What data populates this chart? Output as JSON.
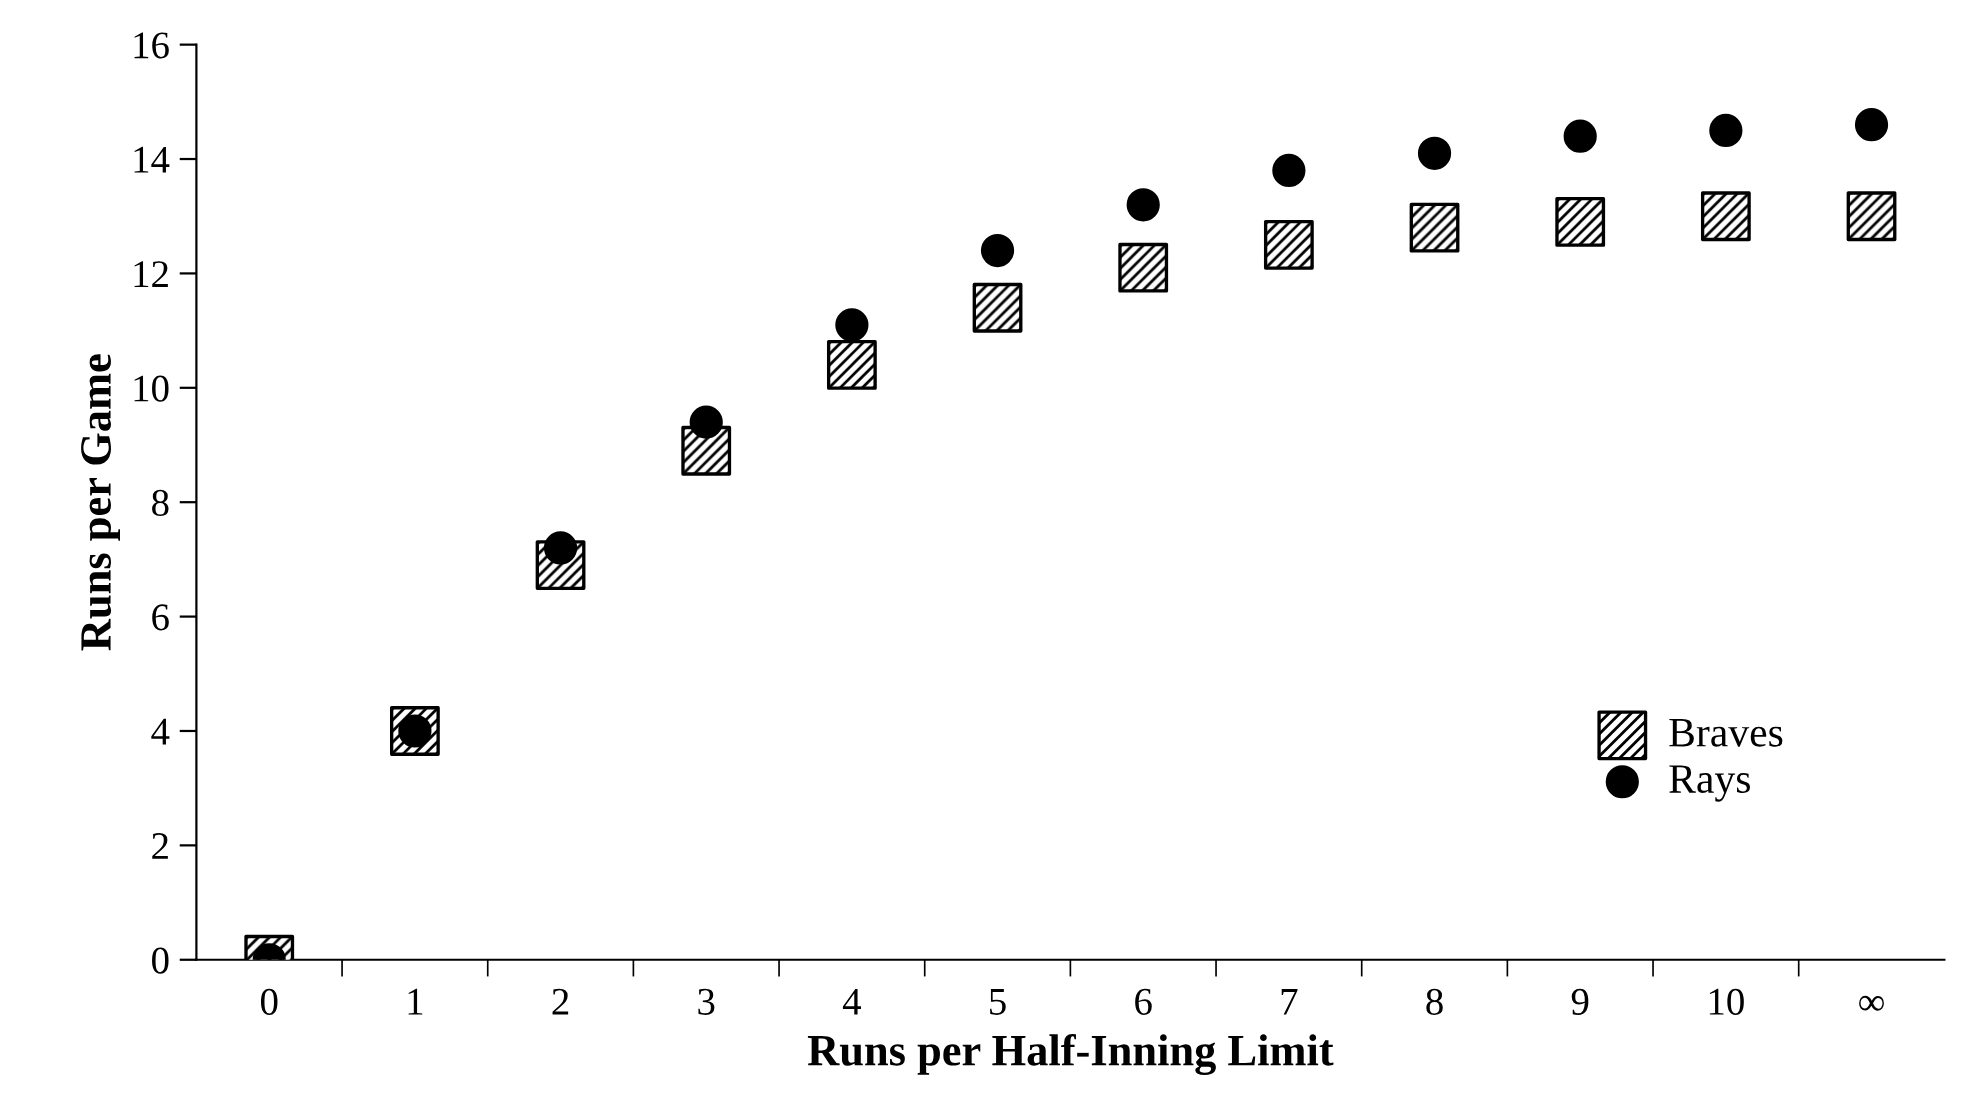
{
  "chart_data": {
    "type": "scatter",
    "xlabel": "Runs per Half-Inning Limit",
    "ylabel": "Runs per Game",
    "categories": [
      "0",
      "1",
      "2",
      "3",
      "4",
      "5",
      "6",
      "7",
      "8",
      "9",
      "10",
      "∞"
    ],
    "series": [
      {
        "name": "Braves",
        "color": "#000000",
        "marker": "square",
        "values": [
          0,
          4,
          6.9,
          8.9,
          10.4,
          11.4,
          12.1,
          12.5,
          12.8,
          12.9,
          13.0,
          13.0
        ]
      },
      {
        "name": "Rays",
        "color": "#000000",
        "marker": "circle",
        "values": [
          0,
          4,
          7.2,
          9.4,
          11.1,
          12.4,
          13.2,
          13.8,
          14.1,
          14.4,
          14.5,
          14.6
        ]
      }
    ],
    "ylim": [
      0,
      16
    ],
    "yticks": [
      0,
      2,
      4,
      6,
      8,
      10,
      12,
      14,
      16
    ],
    "grid": false,
    "legend": "bottom right"
  }
}
